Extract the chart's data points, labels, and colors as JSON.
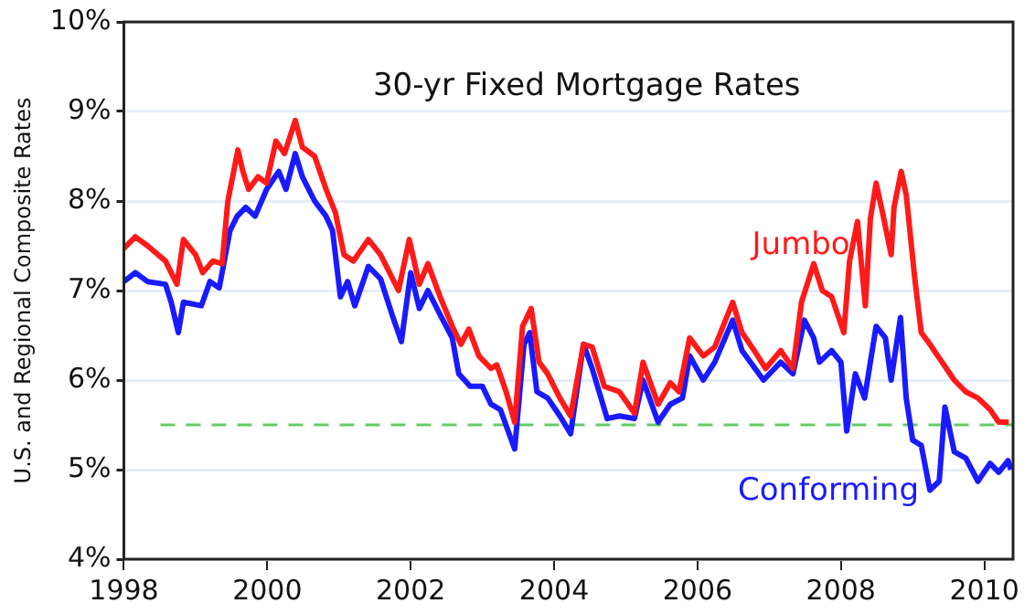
{
  "chart_data": {
    "type": "line",
    "title": "30-yr Fixed Mortgage Rates",
    "ylabel": "U.S. and Regional Composite Rates",
    "xlim": [
      1998,
      2010.4
    ],
    "xticks": [
      1998,
      2000,
      2002,
      2004,
      2006,
      2008,
      2010
    ],
    "ylim": [
      4,
      10
    ],
    "yticks": [
      {
        "value": 4,
        "label": "4%"
      },
      {
        "value": 5,
        "label": "5%"
      },
      {
        "value": 6,
        "label": "6%"
      },
      {
        "value": 7,
        "label": "7%"
      },
      {
        "value": 8,
        "label": "8%"
      },
      {
        "value": 9,
        "label": "9%"
      },
      {
        "value": 10,
        "label": "10%"
      }
    ],
    "grid": "y",
    "legend": false,
    "marker": "none",
    "line_style": "solid",
    "ref_lines": [
      {
        "axis": "y",
        "value": 5.5,
        "color": "#66cc66",
        "line_style": "dashed"
      }
    ],
    "series": [
      {
        "name": "Jumbo",
        "color": "#ff1a1a",
        "x": [
          1998.0,
          1998.16,
          1998.33,
          1998.58,
          1998.74,
          1998.83,
          1999.0,
          1999.1,
          1999.24,
          1999.37,
          1999.45,
          1999.59,
          1999.66,
          1999.74,
          1999.87,
          1999.99,
          2000.12,
          2000.24,
          2000.39,
          2000.49,
          2000.66,
          2000.82,
          2000.95,
          2001.07,
          2001.2,
          2001.41,
          2001.58,
          2001.83,
          2001.98,
          2002.12,
          2002.24,
          2002.41,
          2002.58,
          2002.7,
          2002.81,
          2002.95,
          2003.12,
          2003.2,
          2003.33,
          2003.45,
          2003.56,
          2003.68,
          2003.79,
          2003.91,
          2004.08,
          2004.23,
          2004.41,
          2004.53,
          2004.7,
          2004.91,
          2005.12,
          2005.24,
          2005.45,
          2005.62,
          2005.74,
          2005.89,
          2006.08,
          2006.24,
          2006.49,
          2006.62,
          2006.79,
          2006.95,
          2007.16,
          2007.33,
          2007.45,
          2007.62,
          2007.74,
          2007.87,
          2008.04,
          2008.12,
          2008.23,
          2008.34,
          2008.41,
          2008.49,
          2008.58,
          2008.7,
          2008.74,
          2008.84,
          2008.91,
          2009.03,
          2009.12,
          2009.24,
          2009.41,
          2009.58,
          2009.74,
          2009.91,
          2010.08,
          2010.2,
          2010.34
        ],
        "values": [
          7.47,
          7.6,
          7.5,
          7.33,
          7.07,
          7.57,
          7.4,
          7.2,
          7.33,
          7.3,
          8.0,
          8.57,
          8.33,
          8.13,
          8.27,
          8.2,
          8.67,
          8.53,
          8.9,
          8.6,
          8.5,
          8.13,
          7.87,
          7.4,
          7.33,
          7.57,
          7.4,
          7.0,
          7.57,
          7.07,
          7.3,
          6.93,
          6.6,
          6.4,
          6.57,
          6.27,
          6.13,
          6.17,
          5.87,
          5.53,
          6.6,
          6.8,
          6.2,
          6.07,
          5.8,
          5.6,
          6.4,
          6.37,
          5.93,
          5.87,
          5.63,
          6.2,
          5.73,
          5.97,
          5.87,
          6.47,
          6.27,
          6.37,
          6.87,
          6.53,
          6.33,
          6.13,
          6.33,
          6.13,
          6.87,
          7.3,
          7.0,
          6.93,
          6.53,
          7.33,
          7.77,
          6.83,
          7.8,
          8.2,
          7.87,
          7.4,
          7.93,
          8.33,
          8.07,
          7.13,
          6.53,
          6.4,
          6.2,
          6.0,
          5.87,
          5.8,
          5.67,
          5.53,
          5.53
        ]
      },
      {
        "name": "Conforming",
        "color": "#1a1aff",
        "x": [
          1998.0,
          1998.16,
          1998.33,
          1998.58,
          1998.66,
          1998.76,
          1998.83,
          1999.08,
          1999.2,
          1999.33,
          1999.48,
          1999.58,
          1999.7,
          1999.83,
          1999.99,
          2000.16,
          2000.26,
          2000.39,
          2000.49,
          2000.66,
          2000.82,
          2000.91,
          2001.02,
          2001.12,
          2001.22,
          2001.41,
          2001.58,
          2001.74,
          2001.87,
          2002.0,
          2002.12,
          2002.24,
          2002.41,
          2002.58,
          2002.67,
          2002.83,
          2003.0,
          2003.12,
          2003.25,
          2003.45,
          2003.58,
          2003.66,
          2003.76,
          2003.91,
          2004.08,
          2004.23,
          2004.41,
          2004.53,
          2004.74,
          2004.91,
          2005.12,
          2005.24,
          2005.45,
          2005.62,
          2005.79,
          2005.89,
          2006.08,
          2006.24,
          2006.49,
          2006.62,
          2006.92,
          2007.16,
          2007.33,
          2007.49,
          2007.62,
          2007.7,
          2007.87,
          2008.0,
          2008.08,
          2008.2,
          2008.33,
          2008.49,
          2008.62,
          2008.7,
          2008.83,
          2008.91,
          2009.0,
          2009.12,
          2009.24,
          2009.37,
          2009.45,
          2009.58,
          2009.74,
          2009.91,
          2010.08,
          2010.2,
          2010.33,
          2010.37
        ],
        "values": [
          7.1,
          7.2,
          7.1,
          7.07,
          6.87,
          6.53,
          6.87,
          6.83,
          7.1,
          7.03,
          7.67,
          7.83,
          7.93,
          7.83,
          8.13,
          8.33,
          8.13,
          8.53,
          8.27,
          8.0,
          7.83,
          7.67,
          6.93,
          7.1,
          6.83,
          7.27,
          7.13,
          6.73,
          6.43,
          7.2,
          6.8,
          7.0,
          6.73,
          6.47,
          6.07,
          5.93,
          5.93,
          5.73,
          5.67,
          5.23,
          6.4,
          6.53,
          5.87,
          5.8,
          5.6,
          5.4,
          6.4,
          6.13,
          5.57,
          5.6,
          5.57,
          6.0,
          5.53,
          5.73,
          5.8,
          6.27,
          6.0,
          6.2,
          6.67,
          6.33,
          6.0,
          6.2,
          6.07,
          6.67,
          6.47,
          6.2,
          6.33,
          6.2,
          5.43,
          6.07,
          5.8,
          6.6,
          6.47,
          6.0,
          6.7,
          5.8,
          5.33,
          5.27,
          4.77,
          4.87,
          5.7,
          5.2,
          5.13,
          4.87,
          5.07,
          4.97,
          5.1,
          5.0
        ]
      }
    ]
  }
}
